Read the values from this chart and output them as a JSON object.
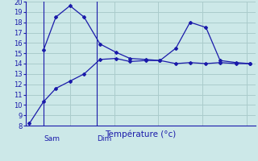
{
  "background_color": "#cce8e8",
  "grid_color": "#aacccc",
  "line_color": "#1a1aaa",
  "spine_color": "#1a1aaa",
  "xlabel": "Température (°c)",
  "ylim": [
    8,
    20
  ],
  "xlim": [
    0,
    13
  ],
  "day_labels": [
    {
      "label": "Sam",
      "x": 1.0
    },
    {
      "label": "Dim",
      "x": 4.0
    }
  ],
  "day_vlines": [
    1.0,
    4.0
  ],
  "series1_x": [
    0.2,
    1.0,
    1.7,
    2.5,
    3.3,
    4.2,
    5.1,
    5.9,
    6.8,
    7.6,
    8.5,
    9.3,
    10.2,
    11.0,
    11.9,
    12.7
  ],
  "series1_y": [
    8.2,
    10.3,
    11.6,
    12.3,
    13.0,
    14.4,
    14.5,
    14.2,
    14.3,
    14.3,
    14.0,
    14.1,
    14.0,
    14.1,
    14.0,
    14.0
  ],
  "series2_x": [
    1.0,
    1.7,
    2.5,
    3.3,
    4.2,
    5.1,
    5.9,
    6.8,
    7.6,
    8.5,
    9.3,
    10.2,
    11.0,
    11.9,
    12.7
  ],
  "series2_y": [
    15.3,
    18.5,
    19.6,
    18.5,
    15.9,
    15.1,
    14.5,
    14.4,
    14.3,
    15.5,
    18.0,
    17.5,
    14.3,
    14.1,
    14.0
  ]
}
